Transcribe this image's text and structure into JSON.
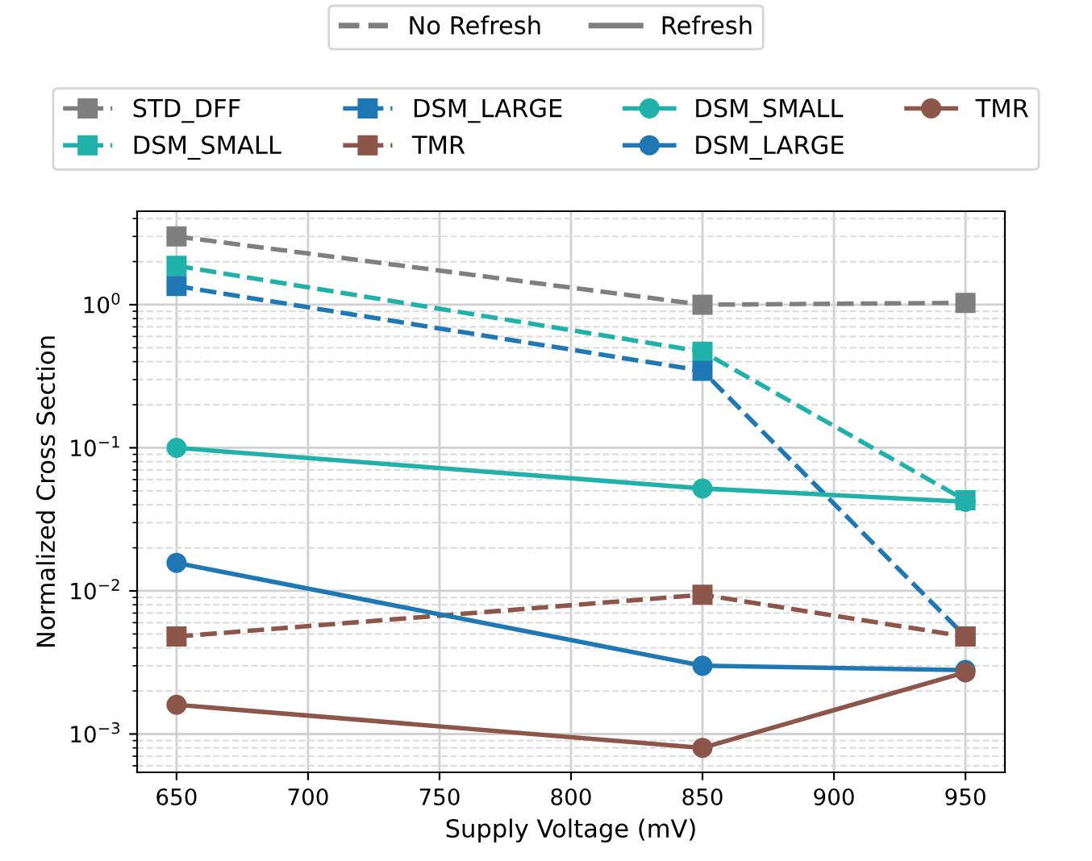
{
  "chart_data": {
    "type": "line",
    "xlabel": "Supply Voltage (mV)",
    "ylabel": "Normalized Cross Section",
    "x": [
      650,
      850,
      950
    ],
    "series": [
      {
        "name": "STD_DFF",
        "color": "#7f7f7f",
        "values": [
          3.0,
          1.0,
          1.03
        ],
        "marker": "square",
        "line_style": "dashed"
      },
      {
        "name": "DSM_SMALL",
        "color": "#20b2aa",
        "values": [
          1.87,
          0.47,
          0.043
        ],
        "marker": "square",
        "line_style": "dashed"
      },
      {
        "name": "DSM_LARGE",
        "color": "#1f77b4",
        "values": [
          1.35,
          0.345,
          0.0048
        ],
        "marker": "square",
        "line_style": "dashed"
      },
      {
        "name": "TMR",
        "color": "#8c564b",
        "values": [
          0.0048,
          0.0094,
          0.0048
        ],
        "marker": "square",
        "line_style": "dashed"
      },
      {
        "name": "DSM_SMALL",
        "color": "#20b2aa",
        "values": [
          0.1,
          0.052,
          0.042
        ],
        "marker": "circle",
        "line_style": "solid"
      },
      {
        "name": "DSM_LARGE",
        "color": "#1f77b4",
        "values": [
          0.0157,
          0.003,
          0.0028
        ],
        "marker": "circle",
        "line_style": "solid"
      },
      {
        "name": "TMR",
        "color": "#8c564b",
        "values": [
          0.0016,
          0.0008,
          0.0027
        ],
        "marker": "circle",
        "line_style": "solid"
      }
    ],
    "annotations": [
      "No Refresh",
      "Refresh"
    ],
    "log": "y",
    "xlim": [
      635,
      965
    ],
    "xticks": [
      650,
      700,
      750,
      800,
      850,
      900,
      950
    ],
    "ylim": [
      0.00054,
      4.5
    ],
    "yticks": [
      {
        "value": 0.001,
        "label": "10$^{−3}$"
      },
      {
        "value": 0.01,
        "label": "10$^{−2}$"
      },
      {
        "value": 0.1,
        "label": "10$^{−1}$"
      },
      {
        "value": 1,
        "label": "10$^{0}$"
      }
    ],
    "grid": true,
    "legend": "top"
  }
}
